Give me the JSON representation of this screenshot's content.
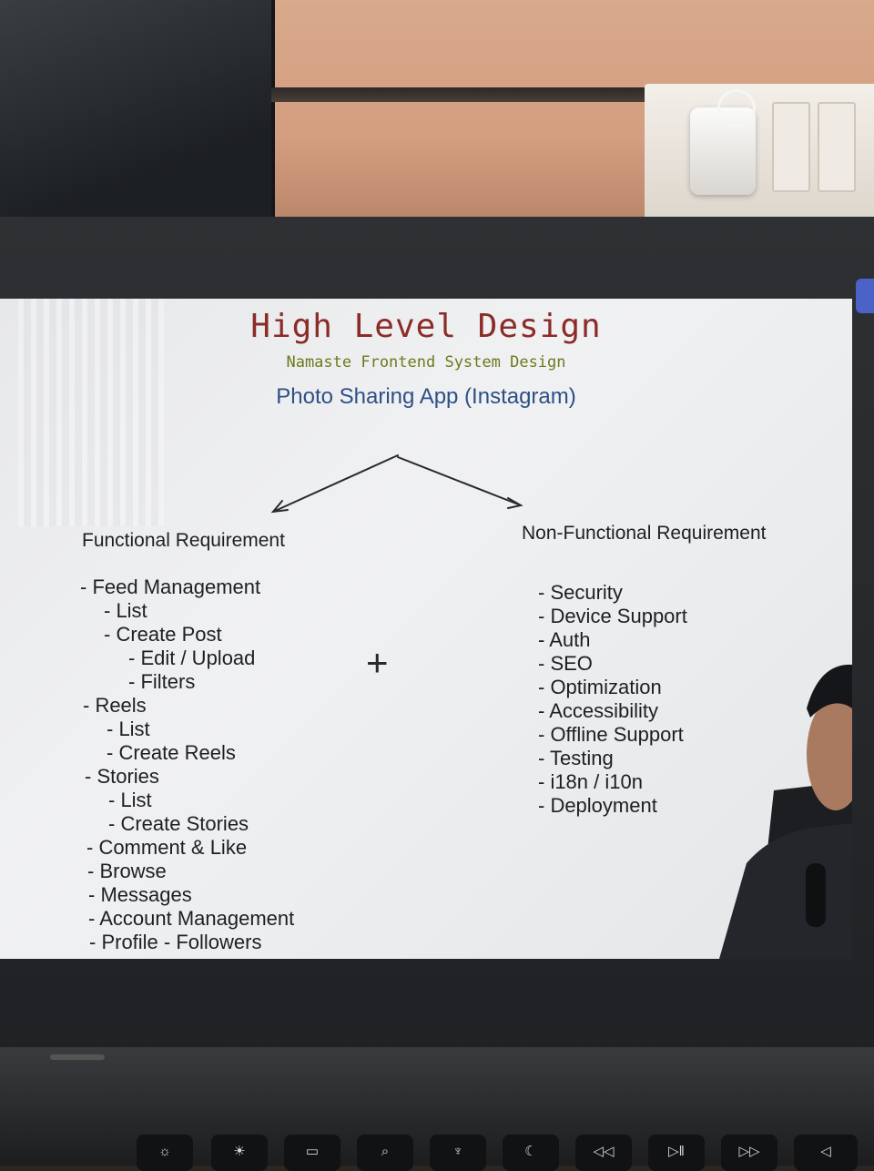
{
  "slide": {
    "title": "High Level Design",
    "subtitle": "Namaste Frontend System Design",
    "app_name": "Photo Sharing App (Instagram)",
    "functional": {
      "heading": "Functional Requirement",
      "items": [
        "- Feed Management",
        "- List",
        "- Create Post",
        "- Edit / Upload",
        "- Filters",
        "- Reels",
        "- List",
        "- Create Reels",
        "- Stories",
        "- List",
        "- Create Stories",
        "- Comment & Like",
        "- Browse",
        "- Messages",
        "- Account Management",
        "- Profile - Followers"
      ]
    },
    "non_functional": {
      "heading": "Non-Functional Requirement",
      "items": [
        "- Security",
        "- Device Support",
        "- Auth",
        "- SEO",
        "- Optimization",
        "- Accessibility",
        "- Offline Support",
        "- Testing",
        "- i18n / i10n",
        "- Deployment"
      ]
    }
  },
  "colors": {
    "title": "#8b2c28",
    "subtitle": "#6d7a1c",
    "app_name": "#2e4f86",
    "accent_tab": "#4b62c7"
  },
  "keyboard_icons": [
    "brightness-down-icon",
    "brightness-up-icon",
    "mission-control-icon",
    "search-icon",
    "microphone-icon",
    "moon-icon",
    "rewind-icon",
    "play-pause-icon",
    "fast-forward-icon",
    "mute-icon"
  ]
}
